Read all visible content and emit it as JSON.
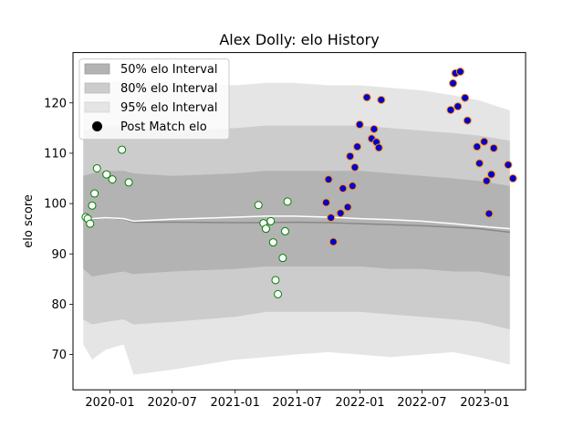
{
  "chart_data": {
    "type": "line",
    "title": "Alex Dolly: elo History",
    "xlabel": "",
    "ylabel": "elo score",
    "xlim": [
      "2019-09-15",
      "2023-04-30"
    ],
    "ylim": [
      63,
      130
    ],
    "x_ticks": [
      "2020-01-01",
      "2020-07-01",
      "2021-01-01",
      "2021-07-01",
      "2022-01-01",
      "2022-07-01",
      "2023-01-01"
    ],
    "x_tick_labels": [
      "2020-01",
      "2020-07",
      "2021-01",
      "2021-07",
      "2022-01",
      "2022-07",
      "2023-01"
    ],
    "y_ticks": [
      70,
      80,
      90,
      100,
      110,
      120
    ],
    "legend_position": "upper-left",
    "legend": [
      "50% elo Interval",
      "80% elo Interval",
      "95% elo Interval",
      "Post Match elo"
    ],
    "colors": {
      "band_50": "#b3b3b3",
      "band_80": "#cccccc",
      "band_95": "#e5e5e5",
      "mean_line": "#888888",
      "median_line": "#ffffff",
      "marker_edge_green": "#008000",
      "marker_edge_orange": "#ff8c00",
      "marker_fill_blue": "#0000cd"
    },
    "bands": {
      "x": [
        "2019-10-15",
        "2019-11-10",
        "2019-12-20",
        "2020-02-10",
        "2020-03-10",
        "2020-07-01",
        "2021-01-01",
        "2021-04-01",
        "2021-06-20",
        "2021-10-01",
        "2022-01-01",
        "2022-04-01",
        "2022-07-01",
        "2022-10-01",
        "2022-12-15",
        "2023-03-15"
      ],
      "p95_low": [
        72,
        69,
        71,
        72,
        66,
        67,
        69,
        69.5,
        70,
        70.5,
        70,
        69.5,
        70,
        70.5,
        69.5,
        68
      ],
      "p80_low": [
        77,
        76,
        76.5,
        77,
        76,
        76.5,
        77.5,
        78.5,
        78.5,
        78.5,
        78.5,
        78,
        77.5,
        77,
        76.5,
        75
      ],
      "p50_low": [
        87,
        85.5,
        86,
        86.5,
        86,
        86.5,
        87,
        87.5,
        87.5,
        87.5,
        87.5,
        87,
        87,
        86.5,
        86.5,
        85.5
      ],
      "p50_high": [
        105.5,
        106,
        106.5,
        106.5,
        106,
        105.5,
        106,
        106.5,
        106.5,
        106.5,
        106.5,
        106,
        105.5,
        105,
        104.5,
        103.5
      ],
      "p80_high": [
        114.5,
        115,
        115.5,
        115.5,
        115,
        114.5,
        115,
        115.5,
        115.5,
        115.5,
        115.5,
        115,
        114.5,
        114,
        113.5,
        112.5
      ],
      "p95_high": [
        123,
        123,
        124,
        124.5,
        124.5,
        124,
        123.5,
        124,
        124,
        123.5,
        123.5,
        123,
        122.5,
        121.5,
        120.5,
        118.5
      ],
      "mean": [
        96.8,
        96.9,
        97.2,
        96.9,
        96.3,
        96.3,
        96.2,
        96.2,
        96.3,
        96.2,
        96.0,
        95.8,
        95.6,
        95.3,
        95.0,
        94.3
      ],
      "median": [
        96.8,
        97.0,
        97.2,
        97.0,
        96.5,
        96.9,
        97.3,
        97.5,
        97.5,
        97.3,
        97.0,
        96.8,
        96.5,
        96.0,
        95.5,
        95.0
      ]
    },
    "series": [
      {
        "name": "Post Match elo",
        "marker_fill": "#ffffff",
        "marker_edge": "#008000",
        "points": [
          [
            "2019-10-22",
            97.3
          ],
          [
            "2019-10-28",
            97.0
          ],
          [
            "2019-11-04",
            96.0
          ],
          [
            "2019-11-10",
            99.6
          ],
          [
            "2019-11-17",
            102.0
          ],
          [
            "2019-11-24",
            107.0
          ],
          [
            "2019-12-22",
            105.8
          ],
          [
            "2020-01-08",
            104.8
          ],
          [
            "2020-02-05",
            110.7
          ],
          [
            "2020-02-25",
            104.2
          ],
          [
            "2021-03-10",
            99.7
          ],
          [
            "2021-03-25",
            96.1
          ],
          [
            "2021-04-01",
            95.0
          ],
          [
            "2021-04-15",
            96.5
          ],
          [
            "2021-04-22",
            92.3
          ],
          [
            "2021-04-29",
            84.8
          ],
          [
            "2021-05-06",
            82.0
          ],
          [
            "2021-05-20",
            89.2
          ],
          [
            "2021-05-27",
            94.5
          ],
          [
            "2021-06-03",
            100.4
          ]
        ]
      },
      {
        "name": "Post Match elo",
        "marker_fill": "#0000cd",
        "marker_edge": "#ff8c00",
        "points": [
          [
            "2021-09-24",
            100.2
          ],
          [
            "2021-10-01",
            104.8
          ],
          [
            "2021-10-08",
            97.2
          ],
          [
            "2021-10-15",
            92.4
          ],
          [
            "2021-11-05",
            98.1
          ],
          [
            "2021-11-12",
            103.0
          ],
          [
            "2021-11-26",
            99.3
          ],
          [
            "2021-12-03",
            109.4
          ],
          [
            "2021-12-10",
            103.5
          ],
          [
            "2021-12-17",
            107.2
          ],
          [
            "2021-12-24",
            111.3
          ],
          [
            "2021-12-31",
            115.7
          ],
          [
            "2022-01-21",
            121.1
          ],
          [
            "2022-02-04",
            112.9
          ],
          [
            "2022-02-11",
            114.8
          ],
          [
            "2022-02-18",
            112.2
          ],
          [
            "2022-02-25",
            111.1
          ],
          [
            "2022-03-04",
            120.6
          ],
          [
            "2022-09-23",
            118.6
          ],
          [
            "2022-09-30",
            123.9
          ],
          [
            "2022-10-07",
            125.9
          ],
          [
            "2022-10-14",
            119.3
          ],
          [
            "2022-10-21",
            126.2
          ],
          [
            "2022-11-04",
            121.0
          ],
          [
            "2022-11-11",
            116.5
          ],
          [
            "2022-12-09",
            111.3
          ],
          [
            "2022-12-16",
            108.0
          ],
          [
            "2022-12-30",
            112.3
          ],
          [
            "2023-01-06",
            104.5
          ],
          [
            "2023-01-13",
            98.0
          ],
          [
            "2023-01-20",
            105.8
          ],
          [
            "2023-01-27",
            111.0
          ],
          [
            "2023-03-10",
            107.7
          ],
          [
            "2023-03-24",
            105.0
          ]
        ]
      }
    ]
  }
}
